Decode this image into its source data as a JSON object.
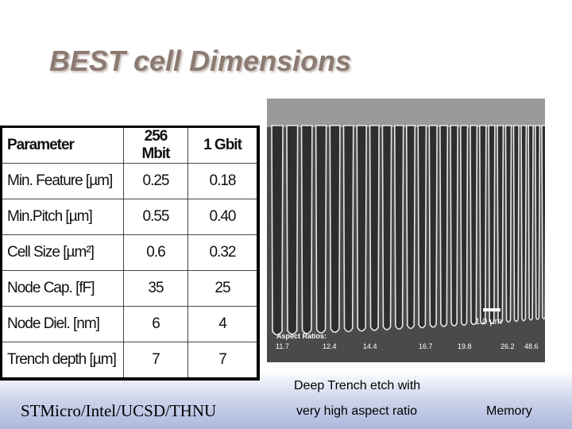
{
  "title": "BEST cell Dimensions",
  "table": {
    "header": [
      "Parameter",
      "256 Mbit",
      "1 Gbit"
    ],
    "rows": [
      [
        "Min. Feature [µm]",
        "0.25",
        "0.18"
      ],
      [
        "Min.Pitch [µm]",
        "0.55",
        "0.40"
      ],
      [
        "Cell Size [µm²]",
        "0.6",
        "0.32"
      ],
      [
        "Node Cap. [fF]",
        "35",
        "25"
      ],
      [
        "Node Diel. [nm]",
        "6",
        "4"
      ],
      [
        "Trench depth [µm]",
        "7",
        "7"
      ]
    ]
  },
  "image": {
    "scale_label": "1.0 µm",
    "aspect_label": "Aspect Ratios:",
    "aspect_ratios": [
      "11.7",
      "12.4",
      "14.4",
      "16.7",
      "19.8",
      "26.2",
      "48.6"
    ]
  },
  "caption": [
    "Deep Trench etch with",
    "very high aspect ratio"
  ],
  "footer": {
    "left": "STMicro/Intel/UCSD/THNU",
    "right": "Memory"
  }
}
